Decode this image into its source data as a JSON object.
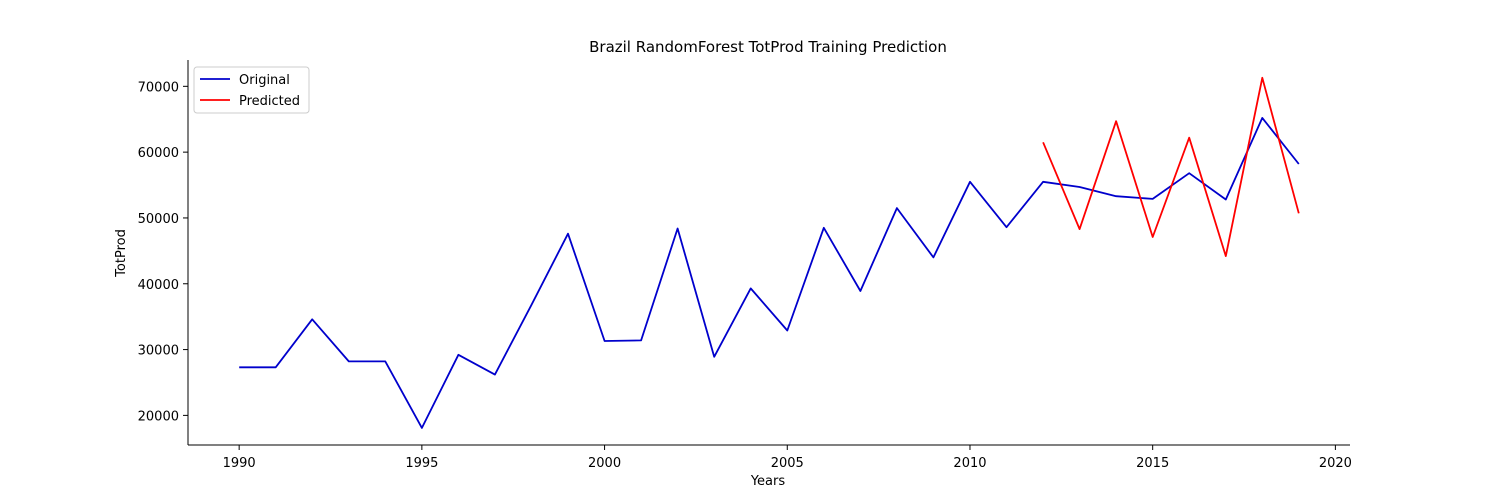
{
  "chart_data": {
    "type": "line",
    "title": "Brazil RandomForest TotProd Training Prediction",
    "xlabel": "Years",
    "ylabel": "TotProd",
    "xlim": [
      1988.6,
      2020.4
    ],
    "ylim": [
      15500,
      74000
    ],
    "xticks": [
      1990,
      1995,
      2000,
      2005,
      2010,
      2015,
      2020
    ],
    "yticks": [
      20000,
      30000,
      40000,
      50000,
      60000,
      70000
    ],
    "grid": false,
    "legend_position": "top-left",
    "series": [
      {
        "name": "Original",
        "color": "#0000cc",
        "x": [
          1990,
          1991,
          1992,
          1993,
          1994,
          1995,
          1996,
          1997,
          1998,
          1999,
          2000,
          2001,
          2002,
          2003,
          2004,
          2005,
          2006,
          2007,
          2008,
          2009,
          2010,
          2011,
          2012,
          2013,
          2014,
          2015,
          2016,
          2017,
          2018,
          2019
        ],
        "y": [
          27300,
          27300,
          34600,
          28200,
          28200,
          18100,
          29200,
          26200,
          36800,
          47600,
          31300,
          31400,
          48400,
          28900,
          39300,
          32900,
          48500,
          38900,
          51500,
          44000,
          55500,
          48600,
          55500,
          54700,
          53300,
          52900,
          56800,
          52800,
          65200,
          58200
        ]
      },
      {
        "name": "Predicted",
        "color": "#ff0000",
        "x": [
          2012,
          2013,
          2014,
          2015,
          2016,
          2017,
          2018,
          2019
        ],
        "y": [
          61500,
          48300,
          64700,
          47100,
          62200,
          44200,
          71300,
          50700
        ]
      }
    ]
  }
}
